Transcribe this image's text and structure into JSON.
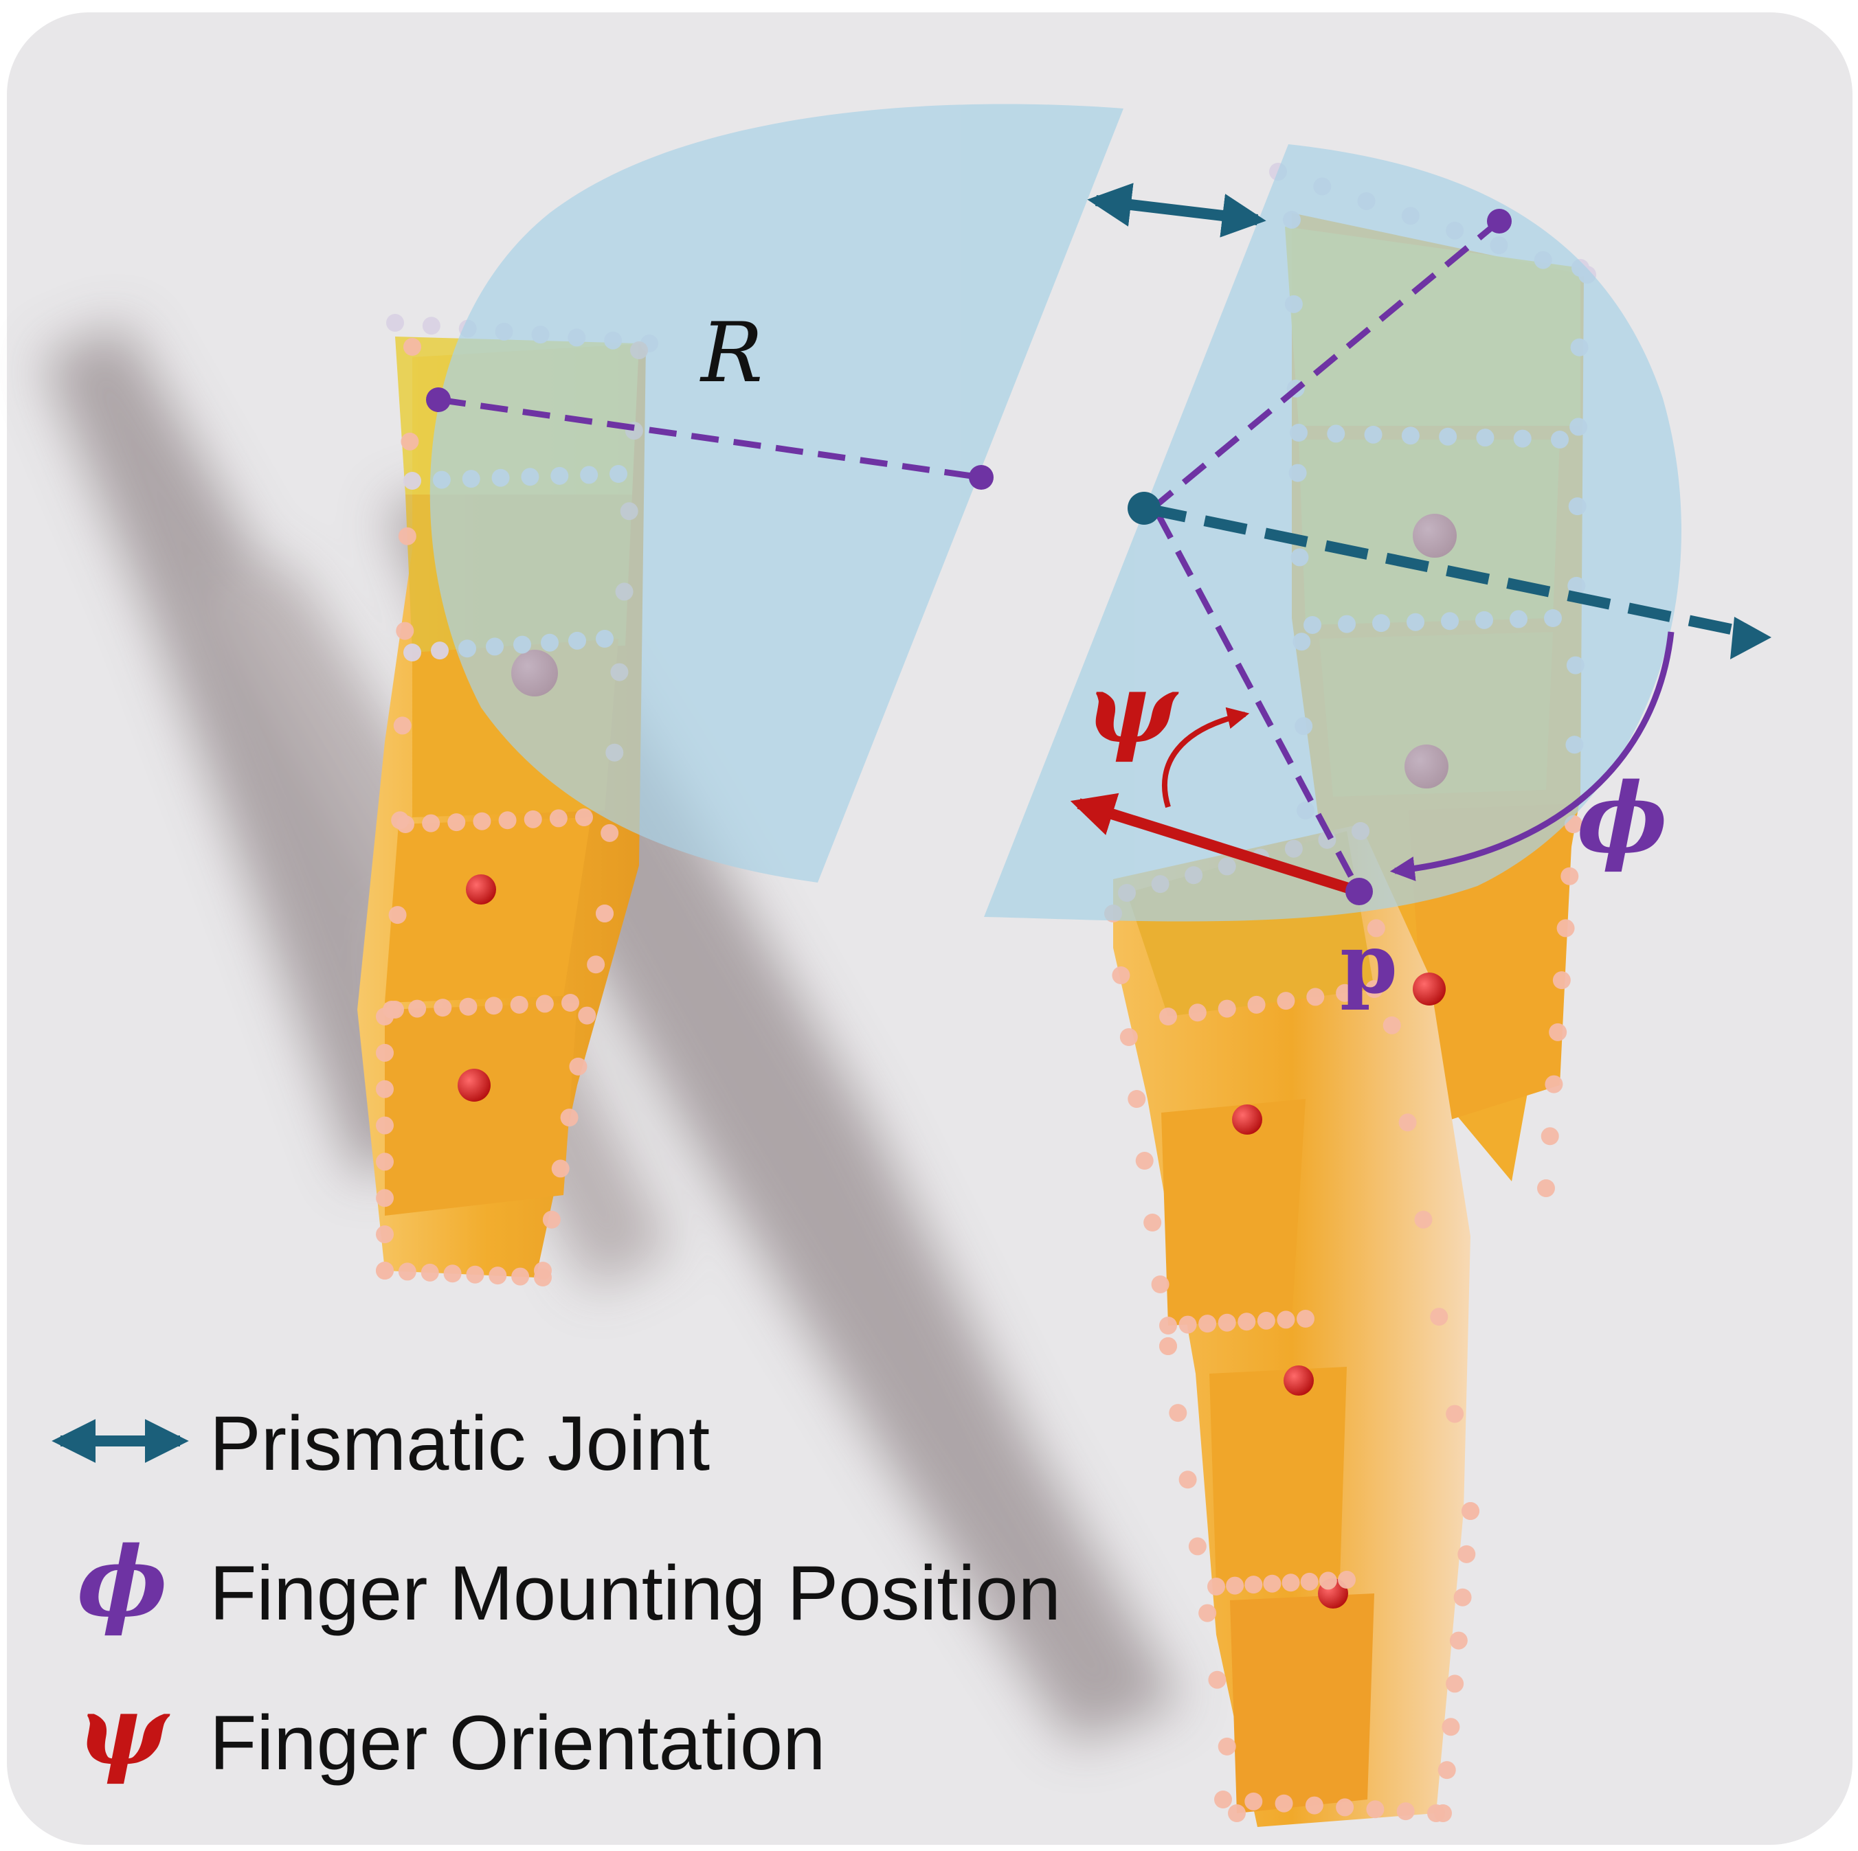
{
  "colors": {
    "background": "#e8e7e9",
    "disk": "#a9d2e6",
    "prismatic": "#1b5f7a",
    "mounting": "#6e33a3",
    "orientation": "#c41414",
    "finger_body": "#f2b032",
    "finger_tip": "#e6cf45",
    "marker_red": "#c81a1a",
    "bead": "#f4b9a6",
    "bead_light": "#d9d2e4",
    "shadow": "#9a9093"
  },
  "labels": {
    "radius": "R",
    "orientation_symbol": "ψ",
    "mounting_symbol": "ϕ",
    "point": "p"
  },
  "legend": [
    {
      "icon": "double-arrow-icon",
      "label": "Prismatic Joint"
    },
    {
      "icon": "phi-icon",
      "symbol": "ϕ",
      "label": "Finger Mounting Position"
    },
    {
      "icon": "psi-icon",
      "symbol": "ψ",
      "label": "Finger Orientation"
    }
  ]
}
